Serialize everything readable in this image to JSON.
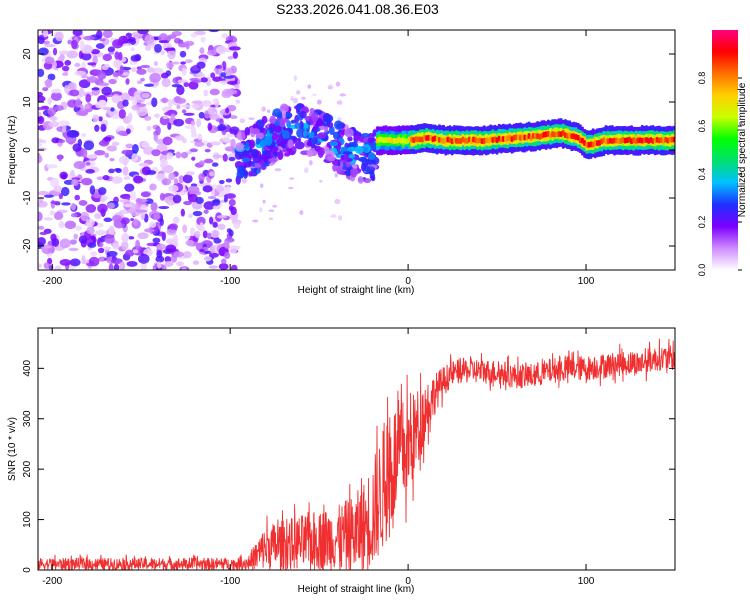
{
  "title": "S233.2026.041.08.36.E03",
  "colors": {
    "trace": "#f03030",
    "axis": "#000000",
    "colorbar_stops": [
      "#ffffff",
      "#cf8bff",
      "#7a00ff",
      "#1e30ff",
      "#00c0ff",
      "#00e070",
      "#00ff00",
      "#c8ff00",
      "#ffd000",
      "#ff7000",
      "#ff0000",
      "#ff0080"
    ]
  },
  "chart_data": [
    {
      "type": "heatmap",
      "title": "",
      "xlabel": "Height of straight line (km)",
      "ylabel": "Frequency (Hz)",
      "xlim": [
        -208,
        150
      ],
      "ylim": [
        -25,
        25
      ],
      "xticks": [
        -200,
        -100,
        0,
        100
      ],
      "yticks": [
        -20,
        -10,
        0,
        10,
        20
      ],
      "xtick_labels": [
        "-200",
        "-100",
        "0",
        "100"
      ],
      "ytick_labels": [
        "-20",
        "-10",
        "0",
        "10",
        "20"
      ],
      "colorbar": {
        "label": "Normalized spectral amplitude",
        "range": [
          0,
          1
        ],
        "ticks": [
          0.0,
          0.2,
          0.4,
          0.6,
          0.8
        ],
        "tick_labels": [
          "0.0",
          "0.2",
          "0.4",
          "0.6",
          "0.8"
        ]
      },
      "regions": [
        {
          "name": "noise",
          "x_range": [
            -208,
            -96
          ],
          "freq_range": [
            -25,
            25
          ],
          "amplitude": 0.1
        },
        {
          "name": "transition",
          "x_range": [
            -96,
            -18
          ],
          "freq_range": [
            -6,
            9
          ],
          "amplitude": 0.25
        },
        {
          "name": "signal-band",
          "x_range": [
            -18,
            150
          ],
          "center_freq": [
            [
              -18,
              2
            ],
            [
              0,
              2
            ],
            [
              10,
              2.5
            ],
            [
              20,
              2
            ],
            [
              40,
              2
            ],
            [
              60,
              2.5
            ],
            [
              75,
              3
            ],
            [
              85,
              3.5
            ],
            [
              95,
              2.5
            ],
            [
              100,
              1
            ],
            [
              110,
              2
            ],
            [
              130,
              2
            ],
            [
              150,
              2
            ]
          ],
          "bandwidth": 3,
          "amplitude": 0.9
        }
      ]
    },
    {
      "type": "line",
      "title": "",
      "xlabel": "Height of straight line (km)",
      "ylabel": "SNR (10 * v/v)",
      "xlim": [
        -208,
        150
      ],
      "ylim": [
        0,
        480
      ],
      "xticks": [
        -200,
        -100,
        0,
        100
      ],
      "yticks": [
        0,
        100,
        200,
        300,
        400
      ],
      "xtick_labels": [
        "-200",
        "-100",
        "0",
        "100"
      ],
      "ytick_labels": [
        "0",
        "100",
        "200",
        "300",
        "400"
      ],
      "series": [
        {
          "name": "SNR",
          "x": [
            -208,
            -95,
            -90,
            -85,
            -80,
            -70,
            -60,
            -50,
            -40,
            -30,
            -25,
            -20,
            -15,
            -10,
            -5,
            0,
            5,
            10,
            15,
            20,
            25,
            30,
            40,
            50,
            60,
            70,
            80,
            90,
            100,
            110,
            120,
            130,
            140,
            150
          ],
          "values": [
            12,
            12,
            14,
            30,
            45,
            50,
            55,
            60,
            62,
            70,
            85,
            110,
            150,
            200,
            230,
            240,
            280,
            320,
            350,
            375,
            390,
            395,
            395,
            392,
            385,
            385,
            395,
            400,
            400,
            405,
            410,
            410,
            420,
            420
          ],
          "noise": [
            12,
            12,
            15,
            30,
            45,
            50,
            55,
            60,
            65,
            80,
            90,
            110,
            120,
            130,
            110,
            100,
            80,
            60,
            40,
            30,
            25,
            25,
            25,
            25,
            25,
            25,
            25,
            25,
            25,
            25,
            25,
            25,
            25,
            25
          ]
        }
      ]
    }
  ]
}
